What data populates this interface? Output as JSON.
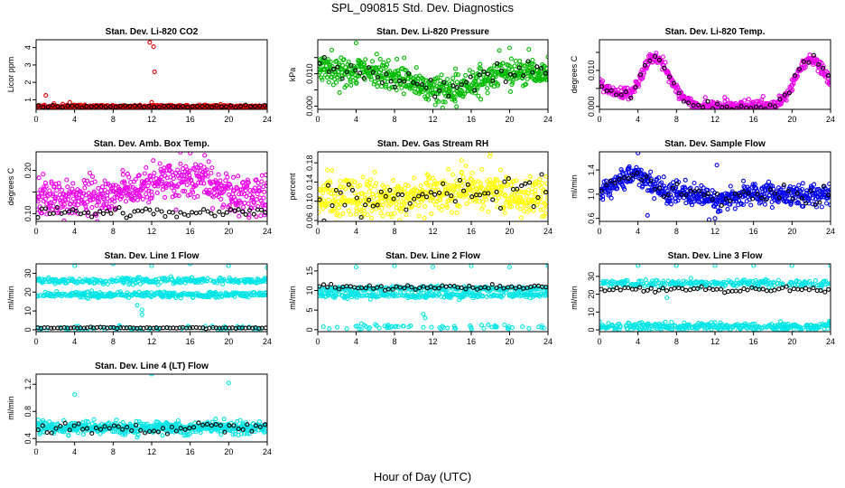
{
  "figure": {
    "title": "SPL_090815  Std. Dev. Diagnostics",
    "xlabel": "Hour of Day (UTC)"
  },
  "chart_data": [
    {
      "type": "scatter",
      "title": "Stan. Dev. Li-820 CO2",
      "ylabel": "Licor ppm",
      "xlim": [
        0,
        24
      ],
      "ylim": [
        0.45,
        4.45
      ],
      "yticks": [
        1,
        2,
        3,
        4
      ],
      "ytick_labels": [
        "1",
        "2",
        "3",
        "4"
      ],
      "xticks": [
        0,
        4,
        8,
        12,
        16,
        20,
        24
      ],
      "xtick_labels": [
        "0",
        "4",
        "8",
        "12",
        "16",
        "20",
        "24"
      ],
      "background": {
        "color": "#e00000",
        "model": "flat",
        "params": [
          0.6
        ],
        "noise": 0.05,
        "n": 520,
        "seed": 11
      },
      "overlay": {
        "color": "#000000",
        "model": "flat",
        "params": [
          0.62
        ],
        "noise": 0.04,
        "n": 48,
        "seed": 12
      },
      "outliers": {
        "color": "#e00000",
        "points": [
          [
            1,
            1.25
          ],
          [
            3.5,
            0.85
          ],
          [
            11.8,
            4.3
          ],
          [
            12.2,
            4.05
          ],
          [
            12.3,
            2.6
          ],
          [
            12,
            0.85
          ]
        ]
      }
    },
    {
      "type": "scatter",
      "title": "Stan. Dev. Li-820 Pressure",
      "ylabel": "kPa",
      "xlim": [
        0,
        24
      ],
      "ylim": [
        -0.001,
        0.0205
      ],
      "yticks": [
        0,
        0.005,
        0.01,
        0.015
      ],
      "ytick_labels": [
        "0.000",
        "",
        "0.010",
        ""
      ],
      "xticks": [
        0,
        4,
        8,
        12,
        16,
        20,
        24
      ],
      "xtick_labels": [
        "0",
        "4",
        "8",
        "12",
        "16",
        "20",
        "24"
      ],
      "background": {
        "color": "#00bb00",
        "model": "bowl",
        "params": [
          0.011,
          0.006,
          13
        ],
        "noise": 0.0022,
        "n": 560,
        "seed": 21
      },
      "overlay": {
        "color": "#000000",
        "model": "bowl",
        "params": [
          0.011,
          0.006,
          13
        ],
        "noise": 0.0018,
        "n": 52,
        "seed": 22
      },
      "outliers": {
        "color": "#00bb00",
        "points": [
          [
            4,
            0.0195
          ],
          [
            0.5,
            0.0148
          ],
          [
            20,
            0.018
          ],
          [
            22,
            0.0175
          ],
          [
            24,
            0.0152
          ],
          [
            16.5,
            0.0085
          ]
        ]
      }
    },
    {
      "type": "scatter",
      "title": "Stan. Dev. Li-820 Temp.",
      "ylabel": "degrees C",
      "xlim": [
        0,
        24
      ],
      "ylim": [
        -0.0008,
        0.0185
      ],
      "yticks": [
        0,
        0.005,
        0.01,
        0.015
      ],
      "ytick_labels": [
        "0.000",
        "",
        "0.010",
        ""
      ],
      "xticks": [
        0,
        4,
        8,
        12,
        16,
        20,
        24
      ],
      "xtick_labels": [
        "0",
        "4",
        "8",
        "12",
        "16",
        "20",
        "24"
      ],
      "background": {
        "color": "#ee00ee",
        "model": "temp",
        "params": [
          0
        ],
        "noise": 0.0008,
        "n": 480,
        "seed": 31
      },
      "overlay": {
        "color": "#000000",
        "model": "temp",
        "params": [
          0
        ],
        "noise": 0.0007,
        "n": 48,
        "seed": 32
      },
      "outliers": {
        "color": "#ee00ee",
        "points": [
          [
            11,
            0.0025
          ],
          [
            13,
            0.0025
          ],
          [
            15.5,
            0.002
          ],
          [
            17,
            0.0028
          ]
        ]
      }
    },
    {
      "type": "scatter",
      "title": "Stan. Dev. Amb. Box Temp.",
      "ylabel": "degrees C",
      "xlim": [
        0,
        24
      ],
      "ylim": [
        0.082,
        0.243
      ],
      "yticks": [
        0.1,
        0.15,
        0.2
      ],
      "ytick_labels": [
        "0.10",
        "",
        "0.20"
      ],
      "xticks": [
        0,
        4,
        8,
        12,
        16,
        20,
        24
      ],
      "xtick_labels": [
        "0",
        "4",
        "8",
        "12",
        "16",
        "20",
        "24"
      ],
      "background": {
        "color": "#ee00ee",
        "model": "hump",
        "params": [
          0.135,
          0.045,
          15
        ],
        "noise": 0.022,
        "n": 540,
        "seed": 41
      },
      "overlay": {
        "color": "#000000",
        "model": "flat",
        "params": [
          0.103
        ],
        "noise": 0.006,
        "n": 60,
        "seed": 42
      },
      "outliers": {
        "color": "#ee00ee",
        "points": [
          [
            16,
            0.24
          ],
          [
            17.5,
            0.235
          ],
          [
            9,
            0.2
          ]
        ]
      }
    },
    {
      "type": "scatter",
      "title": "Stan. Dev. Gas Stream RH",
      "ylabel": "percent",
      "xlim": [
        0,
        24
      ],
      "ylim": [
        0.058,
        0.203
      ],
      "yticks": [
        0.06,
        0.1,
        0.14,
        0.18
      ],
      "ytick_labels": [
        "0.06",
        "0.10",
        "0.14",
        "0.18"
      ],
      "xticks": [
        0,
        4,
        8,
        12,
        16,
        20,
        24
      ],
      "xtick_labels": [
        "0",
        "4",
        "8",
        "12",
        "16",
        "20",
        "24"
      ],
      "background": {
        "color": "#ffff00",
        "model": "hump",
        "params": [
          0.105,
          0.022,
          16
        ],
        "noise": 0.02,
        "n": 560,
        "seed": 51
      },
      "overlay": {
        "color": "#000000",
        "model": "hump",
        "params": [
          0.105,
          0.02,
          16
        ],
        "noise": 0.018,
        "n": 56,
        "seed": 52
      },
      "outliers": {
        "color": "#ffff00",
        "points": [
          [
            18,
            0.2
          ],
          [
            1,
            0.165
          ],
          [
            15,
            0.185
          ]
        ]
      }
    },
    {
      "type": "scatter",
      "title": "Stan. Dev. Sample Flow",
      "ylabel": "ml/min",
      "xlim": [
        0,
        24
      ],
      "ylim": [
        0.55,
        1.7
      ],
      "yticks": [
        0.6,
        1.0,
        1.4
      ],
      "ytick_labels": [
        "0.6",
        "1.0",
        "1.4"
      ],
      "xticks": [
        0,
        4,
        8,
        12,
        16,
        20,
        24
      ],
      "xtick_labels": [
        "0",
        "4",
        "8",
        "12",
        "16",
        "20",
        "24"
      ],
      "background": {
        "color": "#0000ee",
        "model": "flow",
        "params": [
          0
        ],
        "noise": 0.09,
        "n": 560,
        "seed": 61
      },
      "overlay": {
        "color": "#000000",
        "model": "flow",
        "params": [
          0
        ],
        "noise": 0.07,
        "n": 52,
        "seed": 62
      },
      "outliers": {
        "color": "#0000ee",
        "points": [
          [
            4,
            1.68
          ],
          [
            12.2,
            1.48
          ],
          [
            5,
            0.65
          ],
          [
            12,
            0.6
          ]
        ]
      }
    },
    {
      "type": "scatter",
      "title": "Stan. Dev. Line 1 Flow",
      "ylabel": "ml/min",
      "xlim": [
        0,
        24
      ],
      "ylim": [
        -1,
        35
      ],
      "yticks": [
        0,
        10,
        20,
        30
      ],
      "ytick_labels": [
        "0",
        "10",
        "20",
        "30"
      ],
      "xticks": [
        0,
        4,
        8,
        12,
        16,
        20,
        24
      ],
      "xtick_labels": [
        "0",
        "4",
        "8",
        "12",
        "16",
        "20",
        "24"
      ],
      "background": {
        "color": "#00e5e5",
        "model": "bands",
        "params": [
          26,
          18.5,
          0.8
        ],
        "noise": 0.8,
        "n": 640,
        "seed": 71
      },
      "overlay": {
        "color": "#000000",
        "model": "flat",
        "params": [
          1
        ],
        "noise": 0.15,
        "n": 70,
        "seed": 72
      },
      "outliers": {
        "color": "#00e5e5",
        "points": [
          [
            4,
            34
          ],
          [
            8,
            35
          ],
          [
            12,
            34
          ],
          [
            16,
            35
          ],
          [
            20,
            34
          ],
          [
            24,
            33
          ],
          [
            11,
            8
          ],
          [
            11,
            10.5
          ],
          [
            10.5,
            13
          ]
        ]
      }
    },
    {
      "type": "scatter",
      "title": "Stan. Dev. Line 2 Flow",
      "ylabel": "ml/min",
      "xlim": [
        0,
        24
      ],
      "ylim": [
        -0.5,
        16.8
      ],
      "yticks": [
        0,
        5,
        10,
        15
      ],
      "ytick_labels": [
        "0",
        "5",
        "10",
        "15"
      ],
      "xticks": [
        0,
        4,
        8,
        12,
        16,
        20,
        24
      ],
      "xtick_labels": [
        "0",
        "4",
        "8",
        "12",
        "16",
        "20",
        "24"
      ],
      "background": {
        "color": "#00e5e5",
        "model": "bands",
        "params": [
          10.5,
          8.8,
          0.7
        ],
        "noise": 0.35,
        "n": 520,
        "seed": 81
      },
      "overlay": {
        "color": "#000000",
        "model": "flat",
        "params": [
          10.8
        ],
        "noise": 0.3,
        "n": 60,
        "seed": 82
      },
      "outliers": {
        "color": "#00e5e5",
        "points": [
          [
            4,
            16
          ],
          [
            8,
            16.3
          ],
          [
            12,
            16
          ],
          [
            16,
            16.3
          ],
          [
            20,
            16
          ],
          [
            24,
            16.3
          ],
          [
            11,
            4
          ],
          [
            11.2,
            3
          ]
        ]
      }
    },
    {
      "type": "scatter",
      "title": "Stan. Dev. Line 3 Flow",
      "ylabel": "ml/min",
      "xlim": [
        0,
        24
      ],
      "ylim": [
        -1,
        37
      ],
      "yticks": [
        0,
        10,
        20,
        30
      ],
      "ytick_labels": [
        "0",
        "10",
        "20",
        "30"
      ],
      "xticks": [
        0,
        4,
        8,
        12,
        16,
        20,
        24
      ],
      "xtick_labels": [
        "0",
        "4",
        "8",
        "12",
        "16",
        "20",
        "24"
      ],
      "background": {
        "color": "#00e5e5",
        "model": "bands",
        "params": [
          26,
          2,
          0.9
        ],
        "noise": 1.0,
        "n": 560,
        "seed": 91
      },
      "overlay": {
        "color": "#000000",
        "model": "flat",
        "params": [
          22.5
        ],
        "noise": 0.8,
        "n": 60,
        "seed": 92
      },
      "outliers": {
        "color": "#00e5e5",
        "points": [
          [
            4,
            36
          ],
          [
            8,
            36
          ],
          [
            12,
            36
          ],
          [
            16,
            36
          ],
          [
            20,
            36
          ],
          [
            24,
            36
          ],
          [
            7,
            18
          ]
        ]
      }
    },
    {
      "type": "scatter",
      "title": "Stan. Dev. Line 4 (LT) Flow",
      "ylabel": "ml/min",
      "xlim": [
        0,
        24
      ],
      "ylim": [
        0.35,
        1.35
      ],
      "yticks": [
        0.4,
        0.8,
        1.2
      ],
      "ytick_labels": [
        "0.4",
        "0.8",
        "1.2"
      ],
      "xticks": [
        0,
        4,
        8,
        12,
        16,
        20,
        24
      ],
      "xtick_labels": [
        "0",
        "4",
        "8",
        "12",
        "16",
        "20",
        "24"
      ],
      "background": {
        "color": "#00e5e5",
        "model": "flat",
        "params": [
          0.56
        ],
        "noise": 0.045,
        "n": 480,
        "seed": 101
      },
      "overlay": {
        "color": "#000000",
        "model": "flat",
        "params": [
          0.55
        ],
        "noise": 0.035,
        "n": 52,
        "seed": 102
      },
      "outliers": {
        "color": "#00e5e5",
        "points": [
          [
            4,
            1.05
          ],
          [
            12,
            1.35
          ],
          [
            20,
            1.22
          ],
          [
            6,
            0.68
          ],
          [
            10.5,
            0.42
          ],
          [
            21,
            0.45
          ]
        ]
      }
    }
  ]
}
